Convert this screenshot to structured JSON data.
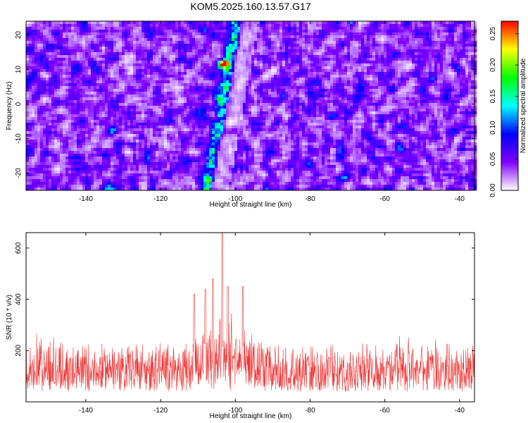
{
  "figure": {
    "title": "KOM5.2025.160.13.57.G17"
  },
  "chart_data": [
    {
      "type": "heatmap",
      "title": "KOM5.2025.160.13.57.G17",
      "xlabel": "Height of straight line (km)",
      "ylabel": "Frequency (Hz)",
      "xlim": [
        -156,
        -36
      ],
      "ylim": [
        -25,
        24
      ],
      "x_ticks": [
        -140,
        -120,
        -100,
        -80,
        -60,
        -40
      ],
      "y_ticks": [
        -20,
        -10,
        0,
        10,
        20
      ],
      "colorbar": {
        "label": "Normalized spectral amplitude",
        "range": [
          0,
          0.27
        ],
        "ticks": [
          "0.00",
          "0.05",
          "0.10",
          "0.15",
          "0.20",
          "0.25"
        ],
        "colormap": [
          "#ffffff",
          "#7f00ff",
          "#0000ff",
          "#00ffff",
          "#00ff00",
          "#ffff00",
          "#ff0000"
        ]
      },
      "features": [
        {
          "description": "diagonal ridge of high amplitude",
          "x_start": -108,
          "y_start": -25,
          "x_end": -100,
          "y_end": 24
        },
        {
          "peak_x": -103.5,
          "peak_y": 11.5,
          "peak_value": 0.27
        }
      ],
      "background_level": 0.06
    },
    {
      "type": "line",
      "xlabel": "Height of straight line (km)",
      "ylabel": "SNR (10 * v/v)",
      "xlim": [
        -156,
        -36
      ],
      "ylim": [
        0,
        660
      ],
      "x_ticks": [
        -140,
        -120,
        -100,
        -80,
        -60,
        -40
      ],
      "y_ticks": [
        200,
        400,
        600
      ],
      "color": "#ee3333",
      "peak": {
        "x": -103.5,
        "y": 660
      },
      "secondary_peaks": [
        {
          "x": -106,
          "y": 480
        },
        {
          "x": -102,
          "y": 450
        },
        {
          "x": -108,
          "y": 440
        },
        {
          "x": -98,
          "y": 450
        },
        {
          "x": -111,
          "y": 420
        }
      ],
      "baseline_range": [
        40,
        250
      ]
    }
  ]
}
